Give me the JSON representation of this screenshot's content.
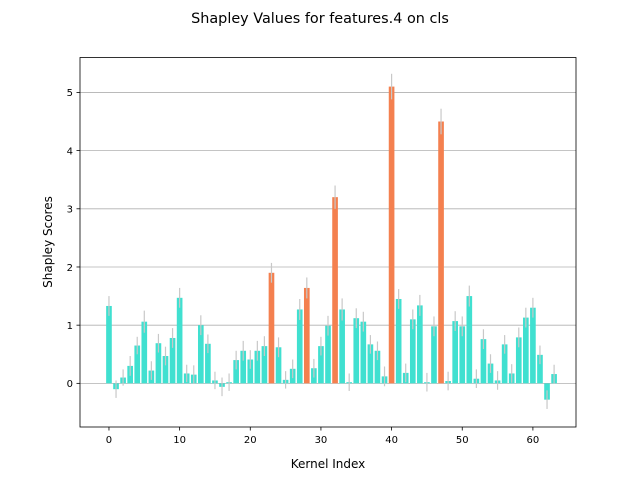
{
  "chart_data": {
    "type": "bar",
    "title": "Shapley Values for features.4 on cls",
    "xlabel": "Kernel Index",
    "ylabel": "Shapley Scores",
    "xlim": [
      -4.1,
      66.1
    ],
    "ylim": [
      -0.75,
      5.6
    ],
    "xticks": [
      0,
      10,
      20,
      30,
      40,
      50,
      60
    ],
    "yticks": [
      0,
      1,
      2,
      3,
      4,
      5
    ],
    "grid": "horizontal",
    "colors": {
      "normal": "#40e0d0",
      "highlight": "#f4804f",
      "error": "#c8c8c8"
    },
    "x": [
      0,
      1,
      2,
      3,
      4,
      5,
      6,
      7,
      8,
      9,
      10,
      11,
      12,
      13,
      14,
      15,
      16,
      17,
      18,
      19,
      20,
      21,
      22,
      23,
      24,
      25,
      26,
      27,
      28,
      29,
      30,
      31,
      32,
      33,
      34,
      35,
      36,
      37,
      38,
      39,
      40,
      41,
      42,
      43,
      44,
      45,
      46,
      47,
      48,
      49,
      50,
      51,
      52,
      53,
      54,
      55,
      56,
      57,
      58,
      59,
      60,
      61,
      62,
      63
    ],
    "values": [
      1.33,
      -0.1,
      0.1,
      0.3,
      0.65,
      1.06,
      0.22,
      0.69,
      0.47,
      0.78,
      1.47,
      0.17,
      0.15,
      1.0,
      0.68,
      0.05,
      -0.06,
      0.02,
      0.4,
      0.56,
      0.41,
      0.56,
      0.64,
      1.9,
      0.62,
      0.06,
      0.25,
      1.27,
      1.64,
      0.26,
      0.64,
      0.99,
      3.2,
      1.27,
      0.02,
      1.12,
      1.06,
      0.67,
      0.56,
      0.12,
      5.1,
      1.45,
      0.18,
      1.1,
      1.34,
      0.02,
      0.98,
      4.5,
      0.04,
      1.07,
      0.98,
      1.5,
      0.08,
      0.76,
      0.34,
      0.05,
      0.67,
      0.17,
      0.79,
      1.13,
      1.3,
      0.49,
      -0.28,
      0.16
    ],
    "errors": [
      0.17,
      0.15,
      0.14,
      0.17,
      0.15,
      0.19,
      0.16,
      0.16,
      0.16,
      0.17,
      0.17,
      0.15,
      0.16,
      0.17,
      0.16,
      0.15,
      0.16,
      0.15,
      0.16,
      0.17,
      0.16,
      0.17,
      0.17,
      0.17,
      0.17,
      0.15,
      0.16,
      0.18,
      0.18,
      0.16,
      0.16,
      0.17,
      0.2,
      0.19,
      0.15,
      0.17,
      0.17,
      0.16,
      0.16,
      0.17,
      0.22,
      0.17,
      0.16,
      0.17,
      0.18,
      0.16,
      0.17,
      0.22,
      0.16,
      0.17,
      0.17,
      0.18,
      0.16,
      0.17,
      0.16,
      0.16,
      0.16,
      0.16,
      0.17,
      0.17,
      0.17,
      0.16,
      0.16,
      0.16
    ],
    "highlighted": [
      23,
      28,
      32,
      40,
      47
    ]
  }
}
